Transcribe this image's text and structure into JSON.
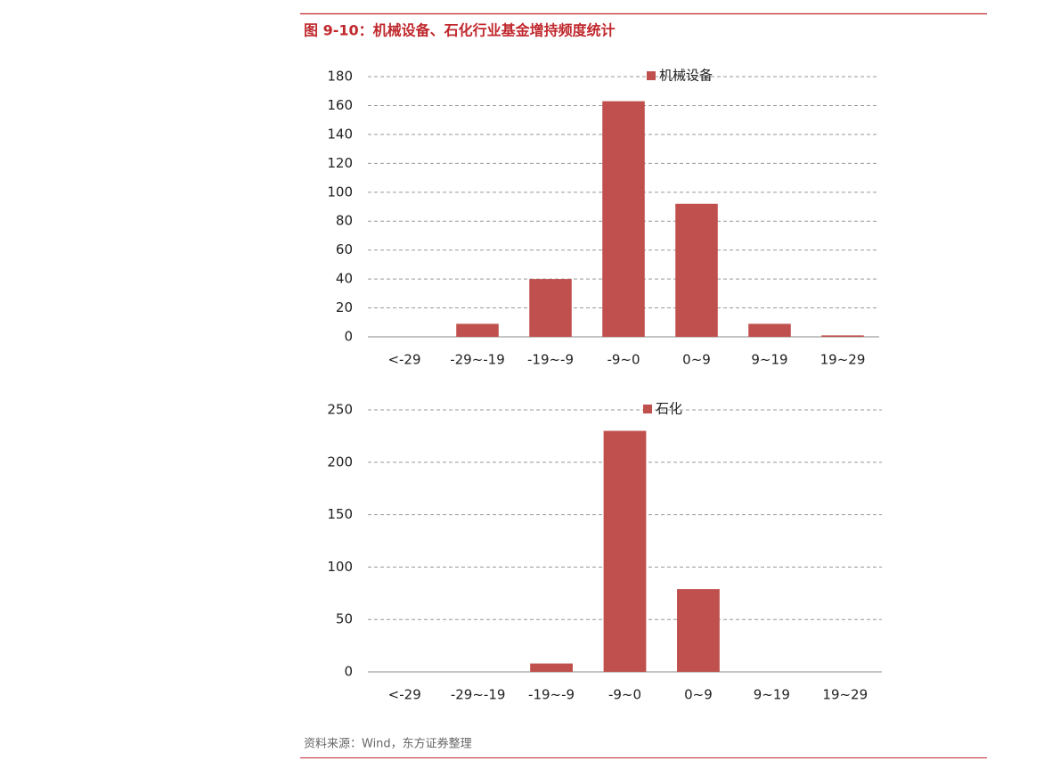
{
  "title": "图 9-10：机械设备、石化行业基金增持频度统计",
  "source": "资料来源：Wind，东方证券整理",
  "chart_data": [
    {
      "type": "bar",
      "categories": [
        "<-29",
        "-29~-19",
        "-19~-9",
        "-9~0",
        "0~9",
        "9~19",
        "19~29"
      ],
      "series": [
        {
          "name": "机械设备",
          "color": "#c0504d",
          "values": [
            0,
            9,
            40,
            163,
            92,
            9,
            1
          ]
        }
      ],
      "ylim": [
        0,
        180
      ],
      "yticks": [
        0,
        20,
        40,
        60,
        80,
        100,
        120,
        140,
        160,
        180
      ],
      "grid": true,
      "legend": "top"
    },
    {
      "type": "bar",
      "categories": [
        "<-29",
        "-29~-19",
        "-19~-9",
        "-9~0",
        "0~9",
        "9~19",
        "19~29"
      ],
      "series": [
        {
          "name": "石化",
          "color": "#c0504d",
          "values": [
            0,
            0,
            8,
            230,
            79,
            0,
            0
          ]
        }
      ],
      "ylim": [
        0,
        250
      ],
      "yticks": [
        0,
        50,
        100,
        150,
        200,
        250
      ],
      "grid": true,
      "legend": "top"
    }
  ]
}
